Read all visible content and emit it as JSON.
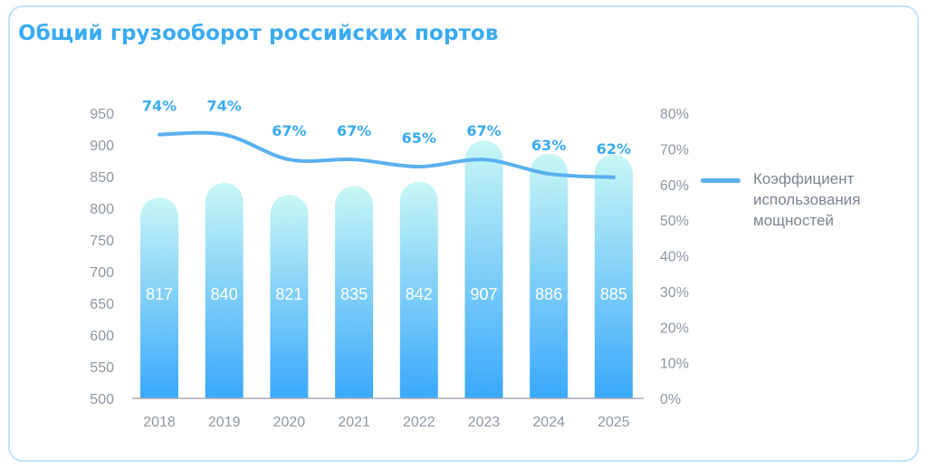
{
  "chart_data": {
    "type": "bar",
    "title": "Общий грузооборот российских портов",
    "categories": [
      "2018",
      "2019",
      "2020",
      "2021",
      "2022",
      "2023",
      "2024",
      "2025"
    ],
    "series": [
      {
        "values": [
          817,
          840,
          821,
          835,
          842,
          907,
          886,
          885
        ],
        "value_labels": [
          "817",
          "840",
          "821",
          "835",
          "842",
          "907",
          "886",
          "885"
        ]
      },
      {
        "name": "Коэффициент использования мощностей",
        "type": "line",
        "axis": "right",
        "values": [
          74,
          74,
          67,
          67,
          65,
          67,
          63,
          62
        ],
        "value_labels": [
          "74%",
          "74%",
          "67%",
          "67%",
          "65%",
          "67%",
          "63%",
          "62%"
        ],
        "color": "#5ab0ee"
      }
    ],
    "ylim": [
      500,
      950
    ],
    "yticks": [
      "500",
      "550",
      "600",
      "650",
      "700",
      "750",
      "800",
      "850",
      "900",
      "950"
    ],
    "y2lim": [
      0,
      80
    ],
    "y2ticks": [
      "0%",
      "10%",
      "20%",
      "30%",
      "40%",
      "50%",
      "60%",
      "70%",
      "80%"
    ],
    "grid": false,
    "legend_position": "right"
  },
  "colors": {
    "title": "#3aaaf2",
    "bar_top": "#c8f7f5",
    "bar_bottom": "#3aa8fb",
    "line": "#5ab0ee",
    "axis": "#8f96a3"
  }
}
